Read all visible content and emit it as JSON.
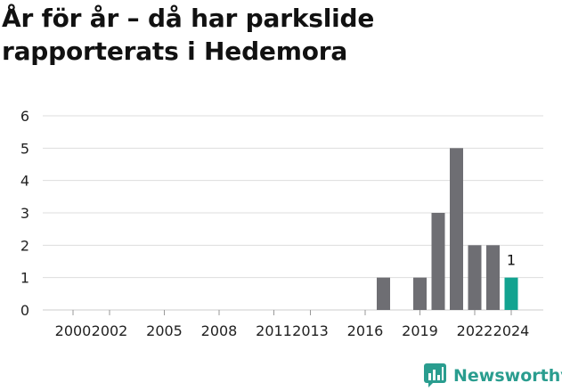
{
  "header": {
    "title": "År för år – då har parkslide rapporterats i Hedemora"
  },
  "brand": {
    "name": "Newsworthy",
    "icon": "newsworthy-logo-icon"
  },
  "colors": {
    "bar": "#6e6e73",
    "highlight": "#12a390",
    "grid": "#dddddd",
    "brand": "#2a9d8f"
  },
  "chart_data": {
    "type": "bar",
    "title": "År för år – då har parkslide rapporterats i Hedemora",
    "xlabel": "",
    "ylabel": "",
    "ylim": [
      0,
      6
    ],
    "yticks": [
      0,
      1,
      2,
      3,
      4,
      5,
      6
    ],
    "xticks": [
      "2000",
      "2002",
      "2005",
      "2008",
      "2011",
      "2013",
      "2016",
      "2019",
      "2022",
      "2024"
    ],
    "grid": true,
    "categories": [
      "2000",
      "2001",
      "2002",
      "2003",
      "2004",
      "2005",
      "2006",
      "2007",
      "2008",
      "2009",
      "2010",
      "2011",
      "2012",
      "2013",
      "2014",
      "2015",
      "2016",
      "2017",
      "2018",
      "2019",
      "2020",
      "2021",
      "2022",
      "2023",
      "2024"
    ],
    "values": [
      0,
      0,
      0,
      0,
      0,
      0,
      0,
      0,
      0,
      0,
      0,
      0,
      0,
      0,
      0,
      0,
      0,
      1,
      0,
      1,
      3,
      5,
      2,
      2,
      1
    ],
    "highlight_category": "2024",
    "data_labels": [
      {
        "category": "2024",
        "text": "1"
      }
    ]
  }
}
